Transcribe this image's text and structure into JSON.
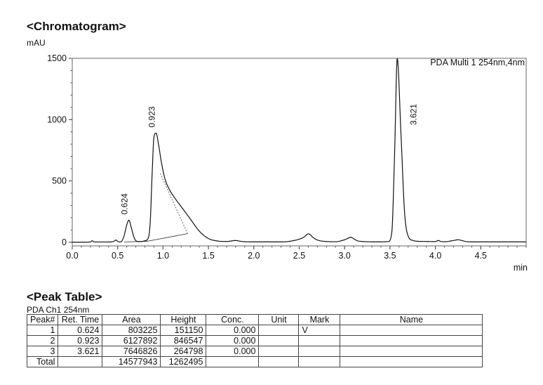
{
  "chromatogram": {
    "title": "<Chromatogram>",
    "y_unit": "mAU",
    "x_unit": "min",
    "channel_label": "PDA Multi 1 254nm,4nm"
  },
  "chart_data": {
    "type": "line",
    "title": "<Chromatogram>",
    "xlabel": "min",
    "ylabel": "mAU",
    "xlim": [
      0.0,
      5.0
    ],
    "ylim": [
      -30,
      1500
    ],
    "x_ticks": [
      "0.0",
      "0.5",
      "1.0",
      "1.5",
      "2.0",
      "2.5",
      "3.0",
      "3.5",
      "4.0",
      "4.5"
    ],
    "y_ticks": [
      "0",
      "500",
      "1000",
      "1500"
    ],
    "grid": false,
    "legend": "top-right",
    "series": [
      {
        "name": "PDA Multi 1 254nm,4nm",
        "x": [
          0.0,
          0.1,
          0.2,
          0.22,
          0.24,
          0.3,
          0.4,
          0.46,
          0.48,
          0.5,
          0.52,
          0.54,
          0.57,
          0.6,
          0.624,
          0.65,
          0.68,
          0.71,
          0.75,
          0.8,
          0.84,
          0.86,
          0.88,
          0.9,
          0.923,
          0.95,
          0.98,
          1.02,
          1.07,
          1.13,
          1.2,
          1.3,
          1.4,
          1.5,
          1.6,
          1.7,
          1.8,
          1.85,
          1.9,
          2.0,
          2.1,
          2.2,
          2.3,
          2.4,
          2.55,
          2.6,
          2.62,
          2.65,
          2.7,
          2.8,
          2.9,
          3.0,
          3.07,
          3.1,
          3.14,
          3.2,
          3.3,
          3.4,
          3.48,
          3.52,
          3.55,
          3.58,
          3.62,
          3.66,
          3.7,
          3.75,
          3.8,
          3.9,
          4.0,
          4.03,
          4.06,
          4.1,
          4.2,
          4.25,
          4.3,
          4.35,
          4.4,
          4.5,
          4.6,
          4.7,
          4.8,
          4.9,
          5.0
        ],
        "y": [
          0,
          0,
          2,
          12,
          2,
          2,
          2,
          8,
          18,
          8,
          2,
          5,
          50,
          140,
          180,
          120,
          40,
          8,
          5,
          12,
          40,
          180,
          560,
          860,
          890,
          800,
          660,
          520,
          430,
          360,
          290,
          190,
          90,
          30,
          10,
          6,
          14,
          8,
          4,
          3,
          3,
          3,
          3,
          8,
          40,
          68,
          62,
          40,
          18,
          6,
          4,
          20,
          40,
          28,
          12,
          6,
          3,
          3,
          5,
          80,
          700,
          1500,
          900,
          250,
          50,
          15,
          8,
          6,
          5,
          14,
          6,
          4,
          14,
          20,
          12,
          4,
          3,
          3,
          3,
          3,
          3,
          3,
          3
        ]
      }
    ],
    "annotations": [
      {
        "x": 0.624,
        "y": 180,
        "text": "0.624"
      },
      {
        "x": 0.923,
        "y": 890,
        "text": "0.923"
      },
      {
        "x": 3.621,
        "y": 1500,
        "text": "3.621"
      }
    ],
    "baselines": [
      {
        "x": [
          0.57,
          0.83
        ],
        "y": [
          2,
          8
        ]
      },
      {
        "x": [
          0.83,
          1.27
        ],
        "y": [
          8,
          70
        ]
      }
    ]
  },
  "peak_table": {
    "title": "<Peak Table>",
    "detector": "PDA Ch1 254nm",
    "headers": [
      "Peak#",
      "Ret. Time",
      "Area",
      "Height",
      "Conc.",
      "Unit",
      "Mark",
      "Name"
    ],
    "rows": [
      [
        "1",
        "0.624",
        "803225",
        "151150",
        "0.000",
        "",
        "V",
        ""
      ],
      [
        "2",
        "0.923",
        "6127892",
        "846547",
        "0.000",
        "",
        "",
        ""
      ],
      [
        "3",
        "3.621",
        "7646826",
        "264798",
        "0.000",
        "",
        "",
        ""
      ],
      [
        "Total",
        "",
        "14577943",
        "1262495",
        "",
        "",
        "",
        ""
      ]
    ]
  }
}
